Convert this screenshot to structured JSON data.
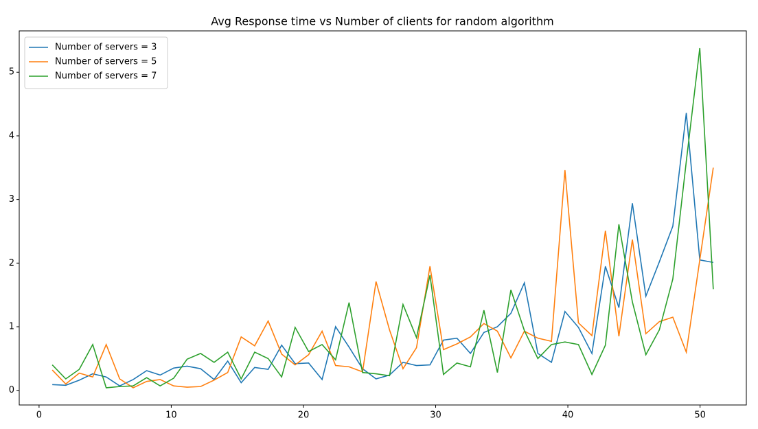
{
  "chart_data": {
    "type": "line",
    "title": "Avg Response time vs Number of clients for random algorithm",
    "x": [
      1,
      2.02,
      3.04,
      4.06,
      5.08,
      6.1,
      7.12,
      8.14,
      9.16,
      10.18,
      11.2,
      12.22,
      13.24,
      14.27,
      15.29,
      16.31,
      17.33,
      18.35,
      19.37,
      20.39,
      21.41,
      22.43,
      23.45,
      24.47,
      25.49,
      26.51,
      27.53,
      28.55,
      29.57,
      30.59,
      31.61,
      32.63,
      33.65,
      34.67,
      35.69,
      36.71,
      37.73,
      38.76,
      39.78,
      40.8,
      41.82,
      42.84,
      43.86,
      44.88,
      45.9,
      46.92,
      47.94,
      48.96,
      49.98,
      51
    ],
    "series": [
      {
        "name": "Number of servers = 3",
        "color": "#1f77b4",
        "values": [
          0.09,
          0.08,
          0.16,
          0.26,
          0.21,
          0.07,
          0.17,
          0.31,
          0.24,
          0.35,
          0.38,
          0.34,
          0.17,
          0.46,
          0.12,
          0.36,
          0.33,
          0.71,
          0.42,
          0.43,
          0.17,
          1.0,
          0.68,
          0.34,
          0.18,
          0.24,
          0.44,
          0.39,
          0.4,
          0.79,
          0.82,
          0.58,
          0.91,
          1.0,
          1.21,
          1.69,
          0.58,
          0.44,
          1.24,
          0.99,
          0.58,
          1.95,
          1.3,
          2.94,
          1.48,
          2.02,
          2.58,
          4.36,
          2.05,
          2.01
        ]
      },
      {
        "name": "Number of servers = 5",
        "color": "#ff7f0e",
        "values": [
          0.32,
          0.1,
          0.27,
          0.21,
          0.72,
          0.18,
          0.04,
          0.14,
          0.17,
          0.07,
          0.05,
          0.06,
          0.16,
          0.28,
          0.84,
          0.7,
          1.09,
          0.57,
          0.4,
          0.56,
          0.93,
          0.39,
          0.37,
          0.29,
          1.71,
          0.95,
          0.34,
          0.67,
          1.95,
          0.64,
          0.73,
          0.84,
          1.05,
          0.93,
          0.51,
          0.93,
          0.82,
          0.77,
          3.46,
          1.06,
          0.86,
          2.51,
          0.85,
          2.37,
          0.89,
          1.08,
          1.15,
          0.6,
          2.05,
          3.5
        ]
      },
      {
        "name": "Number of servers = 7",
        "color": "#2ca02c",
        "values": [
          0.4,
          0.18,
          0.33,
          0.72,
          0.04,
          0.06,
          0.07,
          0.2,
          0.07,
          0.19,
          0.49,
          0.58,
          0.44,
          0.6,
          0.18,
          0.6,
          0.5,
          0.21,
          0.99,
          0.61,
          0.72,
          0.48,
          1.38,
          0.28,
          0.26,
          0.23,
          1.35,
          0.83,
          1.81,
          0.25,
          0.43,
          0.37,
          1.26,
          0.28,
          1.58,
          0.94,
          0.5,
          0.72,
          0.76,
          0.72,
          0.25,
          0.71,
          2.61,
          1.39,
          0.56,
          0.95,
          1.75,
          3.6,
          5.38,
          1.59
        ]
      }
    ],
    "xlim": [
      -1.5,
      53.5
    ],
    "xticks": [
      0,
      10,
      20,
      30,
      40,
      50
    ],
    "ylim": [
      -0.23,
      5.65
    ],
    "yticks": [
      0,
      1,
      2,
      3,
      4,
      5
    ],
    "legend": "upper left",
    "grid": false
  }
}
